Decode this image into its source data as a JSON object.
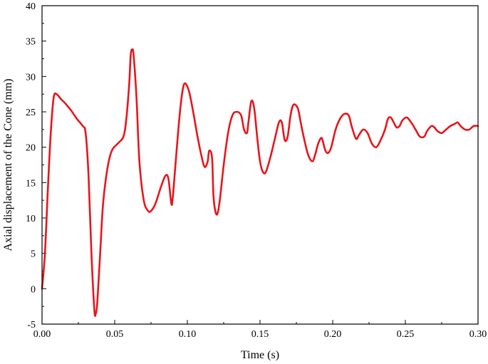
{
  "chart_data": {
    "type": "line",
    "title": "",
    "xlabel": "Time (s)",
    "ylabel": "Axial displacement of the Cone (mm)",
    "xlim": [
      0,
      0.3
    ],
    "ylim": [
      -5,
      40
    ],
    "grid": false,
    "legend": "none",
    "x_ticks": [
      "0.00",
      "0.05",
      "0.10",
      "0.15",
      "0.20",
      "0.25",
      "0.30"
    ],
    "x_tick_values": [
      0,
      0.05,
      0.1,
      0.15,
      0.2,
      0.25,
      0.3
    ],
    "y_ticks": [
      "-5",
      "0",
      "5",
      "10",
      "15",
      "20",
      "25",
      "30",
      "35",
      "40"
    ],
    "y_tick_values": [
      -5,
      0,
      5,
      10,
      15,
      20,
      25,
      30,
      35,
      40
    ],
    "series": [
      {
        "color": "#e8151b",
        "x": [
          0.0,
          0.002,
          0.004,
          0.006,
          0.008,
          0.01,
          0.013,
          0.016,
          0.02,
          0.024,
          0.028,
          0.03,
          0.032,
          0.034,
          0.036,
          0.037,
          0.038,
          0.04,
          0.042,
          0.045,
          0.048,
          0.052,
          0.056,
          0.058,
          0.06,
          0.061,
          0.062,
          0.063,
          0.065,
          0.067,
          0.07,
          0.073,
          0.075,
          0.078,
          0.082,
          0.085,
          0.087,
          0.089,
          0.09,
          0.092,
          0.094,
          0.096,
          0.098,
          0.101,
          0.104,
          0.107,
          0.11,
          0.112,
          0.114,
          0.115,
          0.117,
          0.118,
          0.12,
          0.122,
          0.125,
          0.128,
          0.131,
          0.134,
          0.137,
          0.139,
          0.141,
          0.142,
          0.144,
          0.146,
          0.148,
          0.15,
          0.152,
          0.154,
          0.157,
          0.16,
          0.163,
          0.165,
          0.167,
          0.169,
          0.171,
          0.173,
          0.176,
          0.178,
          0.18,
          0.183,
          0.186,
          0.188,
          0.19,
          0.192,
          0.193,
          0.195,
          0.197,
          0.199,
          0.202,
          0.205,
          0.208,
          0.211,
          0.213,
          0.216,
          0.218,
          0.221,
          0.224,
          0.227,
          0.23,
          0.233,
          0.236,
          0.238,
          0.24,
          0.242,
          0.244,
          0.246,
          0.248,
          0.251,
          0.254,
          0.257,
          0.26,
          0.263,
          0.265,
          0.268,
          0.27,
          0.272,
          0.275,
          0.278,
          0.281,
          0.284,
          0.286,
          0.288,
          0.291,
          0.294,
          0.297,
          0.3
        ],
        "y": [
          0,
          5,
          14,
          22,
          27,
          27.5,
          26.8,
          26.2,
          25.2,
          24,
          23,
          22,
          16,
          5,
          -3,
          -3.5,
          -2,
          5,
          12,
          17,
          19.5,
          20.5,
          21.5,
          24,
          29,
          33,
          33.8,
          33,
          27,
          18,
          12.5,
          11,
          11,
          12,
          14.5,
          16,
          15.5,
          12,
          13,
          18,
          23,
          27,
          29,
          28,
          25,
          21.5,
          18.5,
          17.2,
          18,
          19.5,
          18.5,
          13,
          10.5,
          12,
          17.5,
          22,
          24.5,
          25,
          24.5,
          22.5,
          22,
          23.5,
          26.5,
          25.5,
          21.5,
          18,
          16.5,
          16.5,
          18.5,
          21,
          23.5,
          23.5,
          21,
          21.5,
          24.5,
          26,
          25.5,
          23.5,
          21.5,
          19,
          18,
          19,
          20.5,
          21.3,
          21,
          19.5,
          19.2,
          20,
          22.5,
          24,
          24.7,
          24.5,
          23,
          21.2,
          21.7,
          22.5,
          22,
          20.5,
          20,
          21,
          22.5,
          24,
          24.2,
          23.5,
          22.8,
          23,
          23.8,
          24.2,
          23.5,
          22.5,
          21.5,
          21.5,
          22.3,
          23,
          22.8,
          22.3,
          22,
          22.5,
          23,
          23.3,
          23.5,
          23,
          22.5,
          22.5,
          23,
          23
        ]
      }
    ]
  }
}
